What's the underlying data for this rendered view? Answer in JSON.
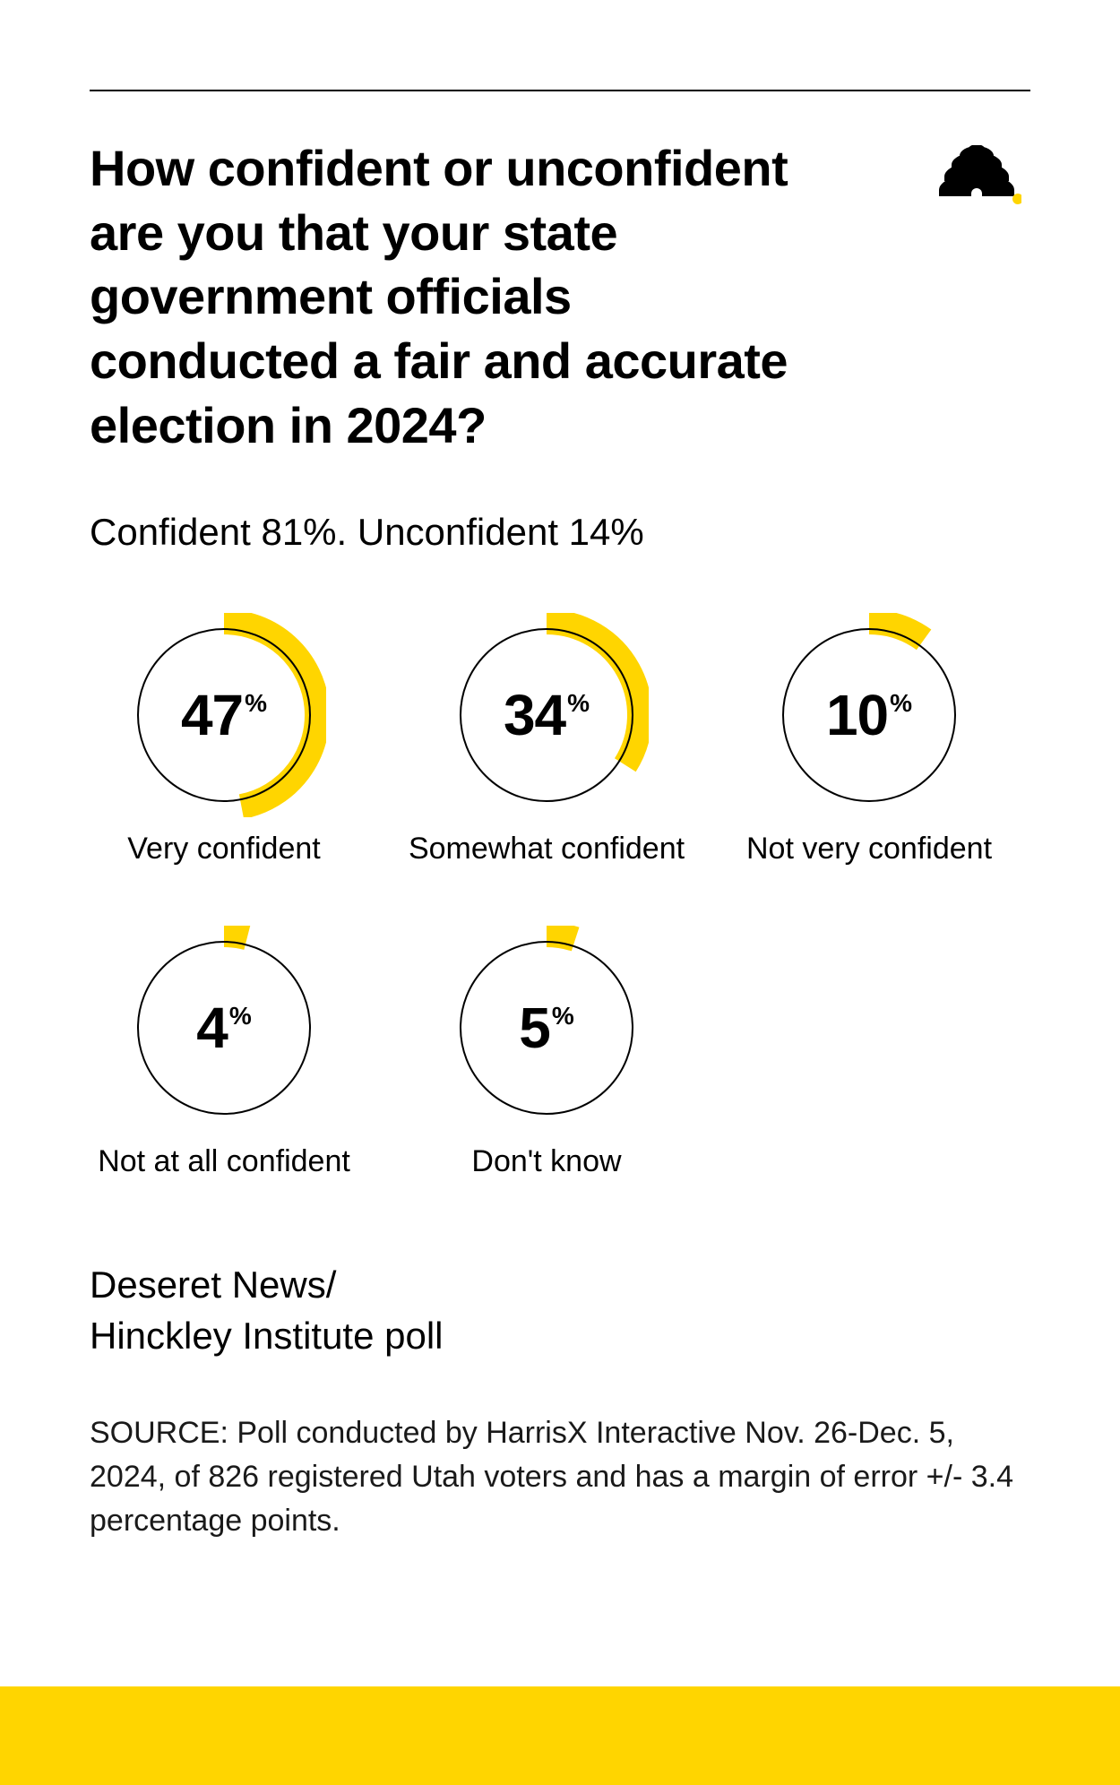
{
  "colors": {
    "accent": "#ffd500",
    "ink": "#000000",
    "ring": "#000000",
    "background": "#ffffff"
  },
  "question": "How confident or unconfident are you that your state government officials conducted a fair and accurate election in 2024?",
  "summary": "Confident 81%. Unconfident 14%",
  "donut": {
    "radius": 96,
    "ring_stroke_width": 2,
    "arc_stroke_width": 28,
    "arc_radius": 104,
    "start_angle_deg": 0,
    "linecap": "butt"
  },
  "items": [
    {
      "value": 47,
      "label": "Very confident"
    },
    {
      "value": 34,
      "label": "Somewhat confident"
    },
    {
      "value": 10,
      "label": "Not very confident"
    },
    {
      "value": 4,
      "label": "Not at all confident"
    },
    {
      "value": 5,
      "label": "Don't know"
    }
  ],
  "attribution_line1": "Deseret News/",
  "attribution_line2": "Hinckley Institute poll",
  "source": "SOURCE: Poll conducted by HarrisX Interactive Nov. 26-Dec. 5, 2024, of 826 registered Utah voters and has a margin of error +/- 3.4 percentage points.",
  "pct_symbol": "%"
}
